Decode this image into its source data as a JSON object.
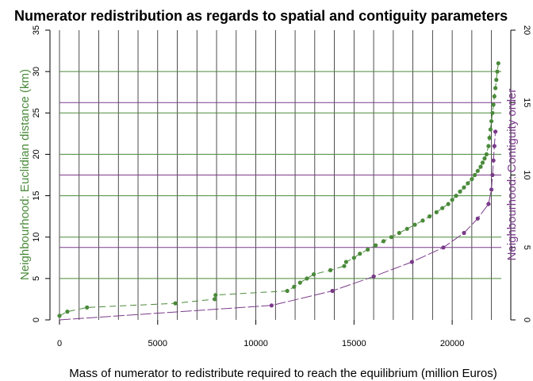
{
  "chart_data": {
    "type": "scatter",
    "title": "Numerator redistribution as regards to spatial and contiguity parameters",
    "xlabel": "Mass of numerator to redistribute required to reach the equilibrium (million Euros)",
    "ylabel_left": "Neighbourhood: Euclidian distance (km)",
    "ylabel_right": "Neighbourhood: Contiguity order",
    "xlim": [
      0,
      22500
    ],
    "ylim_left": [
      0,
      35
    ],
    "ylim_right": [
      0,
      20
    ],
    "x_ticks": [
      0,
      5000,
      10000,
      15000,
      20000
    ],
    "y_left_ticks": [
      0,
      5,
      10,
      15,
      20,
      25,
      30,
      35
    ],
    "y_right_ticks": [
      0,
      5,
      10,
      15,
      20
    ],
    "grid": true,
    "vgrid_x": [
      0,
      1000,
      2000,
      3000,
      4000,
      5000,
      6000,
      7000,
      8000,
      9000,
      10000,
      11000,
      12000,
      13000,
      14000,
      15000,
      16000,
      17000,
      18000,
      19000,
      20000,
      21000,
      22000
    ],
    "hgrid_left": [
      5,
      10,
      15,
      20,
      25,
      30
    ],
    "hgrid_right": [
      5,
      10,
      15
    ],
    "colors": {
      "distance": "#4a8a3a",
      "contiguity": "#7a3a8a",
      "vgrid": "#222222"
    },
    "series": [
      {
        "axis": "left",
        "color": "#4a8a3a",
        "x": [
          0,
          400,
          1400,
          5900,
          7900,
          7950,
          11600,
          11950,
          12250,
          12600,
          12950,
          13800,
          14500,
          14600,
          15000,
          15300,
          15700,
          16100,
          16500,
          16900,
          17300,
          17700,
          18100,
          18500,
          18850,
          19200,
          19500,
          19800,
          20000,
          20200,
          20400,
          20600,
          20800,
          21000,
          21150,
          21300,
          21450,
          21550,
          21650,
          21750,
          21850,
          21900,
          21950,
          22000,
          22050,
          22100,
          22150,
          22200,
          22250,
          22300,
          22350
        ],
        "y": [
          0.5,
          1.0,
          1.5,
          2.0,
          2.5,
          3.0,
          3.5,
          4.0,
          4.5,
          5.0,
          5.5,
          6.0,
          6.5,
          7.0,
          7.5,
          8.0,
          8.5,
          9.0,
          9.5,
          10.0,
          10.5,
          11.0,
          11.5,
          12.0,
          12.5,
          13.0,
          13.5,
          14.0,
          14.5,
          15.0,
          15.5,
          16.0,
          16.5,
          17.0,
          17.5,
          18.0,
          18.5,
          19.0,
          19.5,
          20.0,
          21.0,
          22.0,
          23.0,
          24.0,
          25.0,
          26.0,
          27.0,
          28.0,
          29.0,
          30.0,
          31.0
        ]
      },
      {
        "axis": "right",
        "color": "#7a3a8a",
        "x": [
          10800,
          13900,
          16000,
          17950,
          19550,
          20600,
          21300,
          21850,
          22000,
          22050,
          22100,
          22150,
          22200
        ],
        "y": [
          1,
          2,
          3,
          4,
          5,
          6,
          7,
          8,
          9,
          10,
          11,
          12,
          13
        ]
      }
    ]
  }
}
